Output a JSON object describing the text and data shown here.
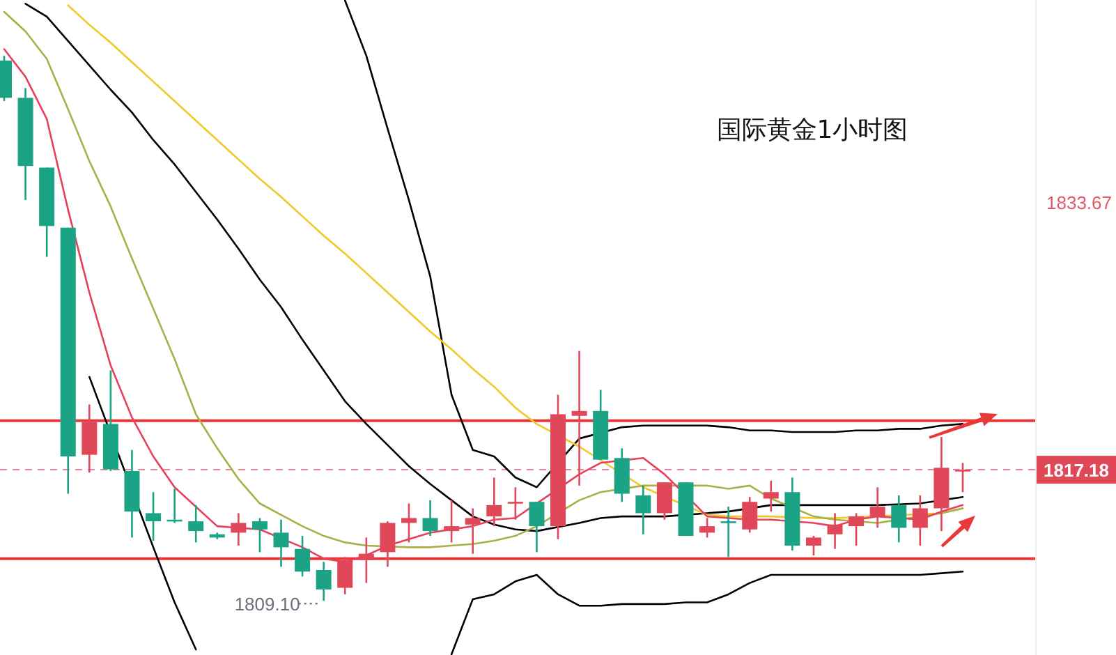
{
  "chart_data": {
    "type": "candlestick",
    "title": "国际黄金1小时图",
    "categories": [
      null,
      null,
      null,
      null,
      null,
      null,
      null,
      null,
      null,
      null,
      null,
      null,
      null,
      null,
      null,
      null,
      null,
      null,
      null,
      null,
      null,
      null,
      null,
      null,
      null,
      null,
      null,
      null,
      null,
      null,
      null,
      null,
      null,
      null,
      null,
      null,
      null,
      null,
      null,
      null,
      null,
      null,
      null,
      null,
      null,
      null
    ],
    "ohlc": [
      [
        1842.4,
        1842.7,
        1839.9,
        1840.1
      ],
      [
        1840.1,
        1840.7,
        1833.8,
        1835.9
      ],
      [
        1835.8,
        1835.8,
        1830.3,
        1832.2
      ],
      [
        1832.1,
        1832.1,
        1815.7,
        1818.0
      ],
      [
        1818.1,
        1821.2,
        1817.0,
        1820.2
      ],
      [
        1820.0,
        1823.3,
        1817.1,
        1817.2
      ],
      [
        1817.1,
        1818.4,
        1813.0,
        1814.6
      ],
      [
        1814.5,
        1815.8,
        1812.8,
        1814.0
      ],
      [
        1814.1,
        1816.0,
        1813.9,
        1814.0
      ],
      [
        1814.0,
        1815.0,
        1812.7,
        1813.4
      ],
      [
        1813.2,
        1813.3,
        1812.9,
        1813.0
      ],
      [
        1813.3,
        1814.5,
        1812.5,
        1813.9
      ],
      [
        1814.0,
        1814.2,
        1812.1,
        1813.5
      ],
      [
        1813.3,
        1814.1,
        1811.2,
        1812.4
      ],
      [
        1812.3,
        1813.1,
        1810.6,
        1810.9
      ],
      [
        1811.0,
        1811.5,
        1809.1,
        1809.8
      ],
      [
        1809.9,
        1811.8,
        1809.5,
        1811.6
      ],
      [
        1811.6,
        1813.0,
        1810.2,
        1812.0
      ],
      [
        1812.1,
        1814.0,
        1811.2,
        1813.9
      ],
      [
        1813.9,
        1815.1,
        1812.7,
        1814.2
      ],
      [
        1814.2,
        1815.3,
        1813.1,
        1813.4
      ],
      [
        1813.4,
        1815.3,
        1812.7,
        1813.7
      ],
      [
        1813.8,
        1814.8,
        1812.0,
        1814.2
      ],
      [
        1814.3,
        1816.7,
        1813.7,
        1815.0
      ],
      [
        1815.1,
        1816.1,
        1814.1,
        1815.2
      ],
      [
        1815.2,
        1815.2,
        1812.1,
        1813.7
      ],
      [
        1813.7,
        1821.8,
        1812.9,
        1820.6
      ],
      [
        1820.5,
        1824.5,
        1816.2,
        1820.8
      ],
      [
        1820.8,
        1822.1,
        1817.8,
        1817.8
      ],
      [
        1817.9,
        1818.5,
        1815.2,
        1815.7
      ],
      [
        1815.6,
        1816.2,
        1813.2,
        1814.5
      ],
      [
        1814.5,
        1816.4,
        1814.1,
        1816.4
      ],
      [
        1816.4,
        1816.4,
        1813.1,
        1813.1
      ],
      [
        1813.3,
        1814.2,
        1813.0,
        1813.7
      ],
      [
        1814.0,
        1814.9,
        1811.8,
        1813.9
      ],
      [
        1813.5,
        1815.5,
        1813.3,
        1815.2
      ],
      [
        1815.4,
        1816.5,
        1814.6,
        1815.8
      ],
      [
        1815.8,
        1816.7,
        1812.2,
        1812.5
      ],
      [
        1812.5,
        1813.1,
        1811.9,
        1813.0
      ],
      [
        1813.2,
        1814.5,
        1812.3,
        1813.8
      ],
      [
        1813.7,
        1814.5,
        1812.5,
        1814.3
      ],
      [
        1814.3,
        1816.1,
        1813.6,
        1814.9
      ],
      [
        1815.0,
        1815.6,
        1812.7,
        1813.6
      ],
      [
        1813.6,
        1815.6,
        1812.5,
        1814.8
      ],
      [
        1814.8,
        1819.2,
        1813.4,
        1817.3
      ],
      [
        1817.1,
        1817.6,
        1815.8,
        1817.18
      ]
    ],
    "colors": [
      "#1ba385",
      "#1ba385",
      "#1ba385",
      "#1ba385",
      "#e0485a",
      "#1ba385",
      "#1ba385",
      "#1ba385",
      "#1ba385",
      "#1ba385",
      "#1ba385",
      "#e0485a",
      "#1ba385",
      "#1ba385",
      "#1ba385",
      "#1ba385",
      "#e0485a",
      "#e0485a",
      "#e0485a",
      "#e0485a",
      "#1ba385",
      "#e0485a",
      "#e0485a",
      "#e0485a",
      "#e0485a",
      "#1ba385",
      "#e0485a",
      "#e0485a",
      "#1ba385",
      "#1ba385",
      "#1ba385",
      "#e0485a",
      "#1ba385",
      "#e0485a",
      "#1ba385",
      "#e0485a",
      "#e0485a",
      "#1ba385",
      "#e0485a",
      "#e0485a",
      "#e0485a",
      "#e0485a",
      "#1ba385",
      "#e0485a",
      "#e0485a",
      "#e0485a"
    ],
    "series": [
      {
        "type": "line",
        "color": "#000000",
        "values": [
          null,
          null,
          null,
          null,
          null,
          null,
          null,
          null,
          null,
          null,
          null,
          null,
          null,
          null,
          null,
          null,
          1846.1,
          1842.7,
          1838.2,
          1833.8,
          1829.1,
          1821.8,
          1818.4,
          1818.0,
          1816.7,
          1816.1,
          null,
          1819.1,
          null,
          1819.8,
          1819.9,
          1819.9,
          1819.9,
          1819.9,
          1819.8,
          1819.6,
          1819.6,
          1819.5,
          1819.5,
          1819.5,
          1819.6,
          1819.6,
          1819.7,
          1819.7,
          1819.9,
          1820.0
        ]
      },
      {
        "type": "line",
        "color": "#000000",
        "values": [
          null,
          1845.9,
          1845.1,
          1843.6,
          1842.1,
          1840.6,
          1839.2,
          1837.5,
          1836.0,
          1834.3,
          1832.6,
          1830.8,
          1828.9,
          1827.2,
          1825.2,
          1823.3,
          1821.4,
          1820.0,
          1818.7,
          1817.4,
          1816.3,
          1815.3,
          1814.3,
          1813.8,
          1813.5,
          1813.4,
          null,
          1813.9,
          1814.2,
          1814.3,
          1814.3,
          1814.3,
          null,
          1814.5,
          1814.6,
          null,
          1815.0,
          null,
          1815.0,
          1815.0,
          1815.0,
          1815.0,
          null,
          1815.1,
          null,
          1815.5
        ]
      },
      {
        "type": "line",
        "color": "#000000",
        "values": [
          null,
          null,
          null,
          null,
          1822.9,
          null,
          null,
          1812.4,
          1809.0,
          1806.1,
          null,
          null,
          null,
          null,
          null,
          null,
          null,
          null,
          null,
          null,
          null,
          1805.8,
          1809.2,
          1809.5,
          1810.3,
          1810.7,
          1809.5,
          1808.8,
          1808.8,
          1808.9,
          1808.9,
          1808.9,
          1809.0,
          1809.0,
          1809.5,
          1810.2,
          1810.7,
          1810.7,
          1810.7,
          1810.7,
          1810.7,
          1810.7,
          1810.7,
          1810.7,
          1810.8,
          1810.9
        ]
      },
      {
        "type": "line",
        "color": "#f0c828",
        "values": [
          null,
          null,
          null,
          1845.8,
          1844.6,
          1843.5,
          1842.3,
          1841.1,
          1839.9,
          1838.7,
          1837.5,
          1836.3,
          1835.1,
          1834.0,
          1832.8,
          1831.6,
          1830.5,
          1829.3,
          1828.1,
          1826.9,
          1825.7,
          1824.6,
          1823.4,
          1822.3,
          1821.0,
          1820.0,
          null,
          1818.6,
          null,
          null,
          1816.1,
          null,
          null,
          1814.4,
          1814.3,
          null,
          1814.3,
          null,
          1814.2,
          1814.2,
          null,
          null,
          null,
          null,
          1814.5,
          1814.8
        ]
      },
      {
        "type": "line",
        "color": "#a8b048",
        "values": [
          1845.4,
          1844.2,
          1842.5,
          1839.4,
          1836.2,
          1833.4,
          1830.2,
          1827.1,
          1824.0,
          1820.6,
          1818.5,
          1816.6,
          1815.1,
          1814.4,
          1813.7,
          1813.1,
          1812.7,
          1812.5,
          null,
          1812.4,
          1812.4,
          1812.5,
          1812.6,
          1812.8,
          1813.1,
          1813.7,
          null,
          1815.3,
          1815.8,
          null,
          1816.2,
          null,
          null,
          1816.2,
          1816.0,
          1816.2,
          1815.4,
          null,
          1814.3,
          1814.1,
          null,
          1813.9,
          null,
          null,
          1814.5,
          1814.8
        ]
      },
      {
        "type": "line",
        "color": "#e8405a",
        "values": [
          1843.1,
          1841.4,
          1838.8,
          1833.2,
          1828.1,
          1823.6,
          1820.4,
          1818.0,
          1816.1,
          1814.9,
          1813.7,
          1813.6,
          1813.5,
          null,
          1812.4,
          1811.7,
          1811.5,
          1811.9,
          1812.5,
          1812.9,
          1813.3,
          1813.5,
          1813.7,
          1814.1,
          1814.2,
          null,
          null,
          1816.9,
          1817.6,
          null,
          1817.9,
          1816.9,
          null,
          1814.3,
          1814.2,
          1814.1,
          1814.1,
          null,
          1813.9,
          1813.7,
          1814.1,
          1814.3,
          null,
          1814.1,
          1814.6,
          1815.0
        ]
      }
    ],
    "ylim": [
      1805.76,
      1846.13
    ],
    "yticks": [
      1817.18,
      1833.67
    ],
    "tick_labels": "y",
    "ref_lines": [
      {
        "axis": "y",
        "value": 1817.18,
        "label": "1817.18",
        "color": "#e8889a",
        "line_style": "dashed"
      },
      {
        "axis": "y",
        "value": 1820.2,
        "color": "#e83838",
        "line_style": "solid"
      },
      {
        "axis": "y",
        "value": 1811.7,
        "color": "#e83838",
        "line_style": "solid"
      }
    ],
    "annotations": [
      "1809.10"
    ]
  }
}
